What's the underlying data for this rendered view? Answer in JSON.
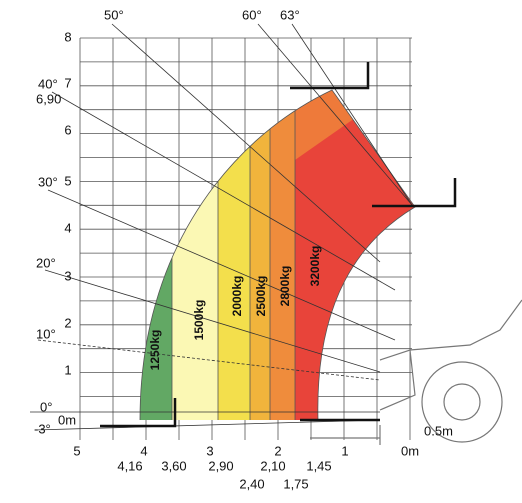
{
  "vertical_scale": [
    "0",
    "1",
    "2",
    "3",
    "4",
    "5",
    "6",
    "7",
    "8"
  ],
  "height_label": "6,90",
  "angles": {
    "a50": "50°",
    "a60": "60°",
    "a63": "63°",
    "a40": "40°",
    "a30": "30°",
    "a20": "20°",
    "a10": "10°",
    "a0": "0°",
    "am3": "-3°"
  },
  "ground_label": "0m",
  "loads": [
    "1250kg",
    "1500kg",
    "2000kg",
    "2500kg",
    "2800kg",
    "3200kg"
  ],
  "horizontal_scale": [
    "5",
    "4",
    "3",
    "2",
    "1",
    "0m"
  ],
  "reach_marks": {
    "r416": "4,16",
    "r360": "3,60",
    "r290": "2,90",
    "r210": "2,10",
    "r145": "1,45",
    "r240": "2,40",
    "r175": "1,75"
  },
  "offset_label": "0.5m"
}
